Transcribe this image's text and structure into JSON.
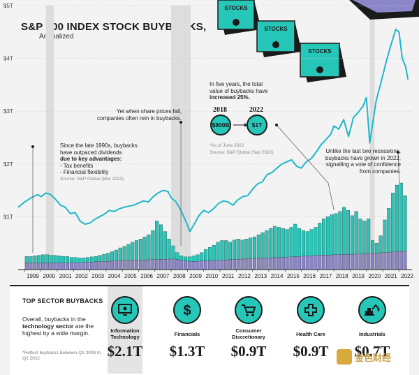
{
  "title": "S&P 500 INDEX STOCK BUYBACKS,",
  "subtitle": "Annualized",
  "annotations": {
    "a1_lines": [
      "Since the late 1990s, buybacks",
      "have outpaced dividends",
      "due to key advantages:",
      "- Tax benefits",
      "- Financial flexibility"
    ],
    "a1_source": "Source: S&P Global (Mar 2020)",
    "a2_lines": [
      "Yet when share prices fall,",
      "companies often rein in buybacks."
    ],
    "a3_lines": [
      "In five years, the total",
      "value of buybacks have",
      "increased 25%."
    ],
    "a3_note": "*As of June 2022",
    "a3_source": "Source: S&P Global (Sep 2022)",
    "year_2018": "2018",
    "year_2022": "2022",
    "bubble_2018": "$800B",
    "bubble_2022": "$1T",
    "a4_lines": [
      "Unlike the last two recessions,",
      "buybacks have grown in 2022,",
      "signalling a vote of confidence",
      "from companies."
    ]
  },
  "illustration": {
    "stock_label": "STOCKS"
  },
  "sectors_panel": {
    "title": "TOP SECTOR BUYBACKS",
    "desc_pre": "Overall, buybacks in the",
    "desc_bold": "technology sector",
    "desc_post": "are the highest by a wide margin.",
    "note": "*Reflect buybacks between Q1 2009 to Q2 2022",
    "sectors": [
      {
        "name": "Information Technology",
        "value": "$2.1T",
        "icon": "monitor-icon"
      },
      {
        "name": "Financials",
        "value": "$1.3T",
        "icon": "dollar-icon"
      },
      {
        "name": "Consumer Discretionary",
        "value": "$0.9T",
        "icon": "cart-icon"
      },
      {
        "name": "Health Care",
        "value": "$0.9T",
        "icon": "medical-cross-icon"
      },
      {
        "name": "Industrials",
        "value": "$0.7T",
        "icon": "excavator-icon"
      }
    ]
  },
  "watermark": "金色财经",
  "colors": {
    "line": "#1fb7c9",
    "buybacks": "#26c6b8",
    "dividends": "#8b86c7",
    "recession": "#dddddd",
    "text": "#1a1a1a"
  },
  "chart_data": {
    "type": "bar",
    "title": "S&P 500 INDEX STOCK BUYBACKS,",
    "subtitle": "Annualized",
    "x_labels": [
      "1999",
      "2000",
      "2001",
      "2002",
      "2003",
      "2004",
      "2005",
      "2006",
      "2007",
      "2008",
      "2009",
      "2010",
      "2011",
      "2012",
      "2013",
      "2014",
      "2015",
      "2016",
      "2017",
      "2018",
      "2019",
      "2020",
      "2021",
      "2022"
    ],
    "y_ticks": [
      "$1T",
      "$2T",
      "$3T",
      "$4T",
      "$5T"
    ],
    "ylim": [
      0,
      5
    ],
    "recession_bands": [
      [
        2000.3,
        2000.8
      ],
      [
        2008.0,
        2009.2
      ],
      [
        2020.2,
        2020.5
      ]
    ],
    "series": [
      {
        "name": "",
        "type": "area",
        "x": [
          1999.0,
          1999.25,
          1999.5,
          1999.75,
          2000.0,
          2000.25,
          2000.5,
          2000.75,
          2001.0,
          2001.25,
          2001.5,
          2001.75,
          2002.0,
          2002.25,
          2002.5,
          2002.75,
          2003.0,
          2003.25,
          2003.5,
          2003.75,
          2004.0,
          2004.25,
          2004.5,
          2004.75,
          2005.0,
          2005.25,
          2005.5,
          2005.75,
          2006.0,
          2006.25,
          2006.5,
          2006.75,
          2007.0,
          2007.25,
          2007.5,
          2007.75,
          2008.0,
          2008.25,
          2008.5,
          2008.75,
          2009.0,
          2009.25,
          2009.5,
          2009.75,
          2010.0,
          2010.25,
          2010.5,
          2010.75,
          2011.0,
          2011.25,
          2011.5,
          2011.75,
          2012.0,
          2012.25,
          2012.5,
          2012.75,
          2013.0,
          2013.25,
          2013.5,
          2013.75,
          2014.0,
          2014.25,
          2014.5,
          2014.75,
          2015.0,
          2015.25,
          2015.5,
          2015.75,
          2016.0,
          2016.25,
          2016.5,
          2016.75,
          2017.0,
          2017.25,
          2017.5,
          2017.75,
          2018.0,
          2018.25,
          2018.5,
          2018.75,
          2019.0,
          2019.25,
          2019.5,
          2019.75,
          2020.0,
          2020.25,
          2020.5,
          2020.75,
          2021.0,
          2021.25,
          2021.5,
          2021.75,
          2022.0,
          2022.25
        ],
        "values": [
          0.25,
          0.25,
          0.26,
          0.27,
          0.28,
          0.28,
          0.27,
          0.27,
          0.26,
          0.25,
          0.25,
          0.23,
          0.23,
          0.22,
          0.22,
          0.23,
          0.24,
          0.25,
          0.27,
          0.29,
          0.31,
          0.34,
          0.37,
          0.41,
          0.44,
          0.48,
          0.52,
          0.55,
          0.58,
          0.62,
          0.66,
          0.74,
          0.92,
          0.85,
          0.72,
          0.58,
          0.45,
          0.32,
          0.26,
          0.24,
          0.24,
          0.26,
          0.28,
          0.32,
          0.38,
          0.42,
          0.46,
          0.52,
          0.55,
          0.55,
          0.52,
          0.56,
          0.58,
          0.56,
          0.58,
          0.6,
          0.62,
          0.66,
          0.7,
          0.74,
          0.78,
          0.82,
          0.8,
          0.78,
          0.76,
          0.8,
          0.86,
          0.78,
          0.74,
          0.72,
          0.76,
          0.8,
          0.88,
          0.96,
          1.0,
          1.04,
          1.06,
          1.1,
          1.18,
          1.12,
          1.02,
          1.1,
          0.96,
          0.92,
          0.96,
          0.55,
          0.5,
          0.64,
          0.94,
          1.16,
          1.45,
          1.6,
          1.64,
          1.4
        ]
      },
      {
        "name": "",
        "type": "area",
        "x": [
          1999.0,
          2002.0,
          2005.0,
          2008.0,
          2009.0,
          2011.0,
          2014.0,
          2017.0,
          2020.0,
          2022.25
        ],
        "values": [
          0.12,
          0.13,
          0.17,
          0.2,
          0.15,
          0.18,
          0.22,
          0.27,
          0.3,
          0.35
        ]
      },
      {
        "name": "",
        "type": "line",
        "x": [
          1998.6,
          1999.0,
          1999.4,
          1999.8,
          2000.0,
          2000.3,
          2000.6,
          2000.9,
          2001.2,
          2001.5,
          2001.8,
          2002.1,
          2002.4,
          2002.7,
          2003.0,
          2003.3,
          2003.6,
          2003.9,
          2004.2,
          2004.5,
          2004.8,
          2005.1,
          2005.4,
          2005.7,
          2006.0,
          2006.3,
          2006.6,
          2006.9,
          2007.2,
          2007.5,
          2007.8,
          2008.0,
          2008.3,
          2008.6,
          2008.9,
          2009.15,
          2009.4,
          2009.7,
          2010.0,
          2010.3,
          2010.6,
          2010.9,
          2011.2,
          2011.5,
          2011.8,
          2012.1,
          2012.4,
          2012.7,
          2013.0,
          2013.3,
          2013.6,
          2013.9,
          2014.2,
          2014.5,
          2014.8,
          2015.1,
          2015.4,
          2015.7,
          2016.0,
          2016.3,
          2016.6,
          2016.9,
          2017.2,
          2017.5,
          2017.8,
          2018.0,
          2018.3,
          2018.6,
          2018.9,
          2019.2,
          2019.5,
          2019.8,
          2020.0,
          2020.2,
          2020.35,
          2020.6,
          2020.9,
          2021.2,
          2021.5,
          2021.8,
          2022.0,
          2022.2,
          2022.4,
          2022.55
        ],
        "values": [
          1.18,
          1.28,
          1.36,
          1.42,
          1.38,
          1.45,
          1.42,
          1.33,
          1.22,
          1.18,
          1.06,
          1.08,
          0.92,
          0.86,
          0.88,
          0.95,
          1.0,
          1.05,
          1.12,
          1.1,
          1.15,
          1.18,
          1.2,
          1.22,
          1.26,
          1.3,
          1.28,
          1.38,
          1.45,
          1.5,
          1.48,
          1.36,
          1.28,
          1.12,
          0.92,
          0.72,
          0.85,
          1.02,
          1.12,
          1.08,
          1.15,
          1.25,
          1.3,
          1.28,
          1.22,
          1.32,
          1.38,
          1.4,
          1.52,
          1.62,
          1.66,
          1.8,
          1.84,
          1.92,
          2.0,
          2.04,
          2.08,
          1.96,
          1.92,
          2.04,
          2.1,
          2.22,
          2.36,
          2.46,
          2.56,
          2.72,
          2.66,
          2.84,
          2.52,
          2.88,
          2.98,
          3.1,
          3.26,
          2.4,
          2.7,
          3.2,
          3.55,
          3.92,
          4.25,
          4.55,
          4.5,
          4.0,
          3.85,
          3.6
        ]
      }
    ]
  }
}
